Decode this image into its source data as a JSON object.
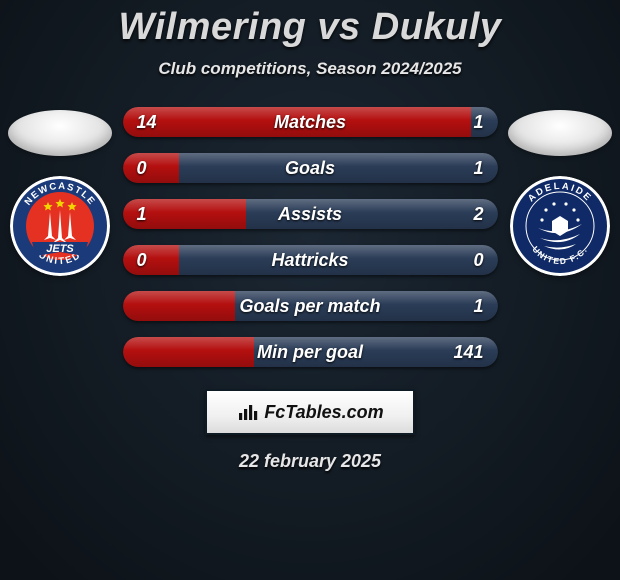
{
  "background_color": "#1b2733",
  "title": "Wilmering vs Dukuly",
  "subtitle": "Club competitions, Season 2024/2025",
  "date_text": "22 february 2025",
  "left_player": {
    "name": "Wilmering",
    "crest": {
      "outer_fill": "#ffffff",
      "ring_fill": "#1a3a7a",
      "ring_text_color": "#ffffff",
      "ring_text_top": "NEWCASTLE",
      "ring_text_bottom": "UNITED",
      "center_fill": "#e53122",
      "banner_fill": "#1a3a7a",
      "banner_text": "JETS",
      "banner_text_color": "#ffffff",
      "jet_fill": "#ffffff",
      "star_fill": "#f2d400"
    }
  },
  "right_player": {
    "name": "Dukuly",
    "crest": {
      "outer_fill": "#ffffff",
      "ring_fill": "#0f2a66",
      "ring_text_color": "#ffffff",
      "ring_text_top": "ADELAIDE",
      "ring_text_bottom": "UNITED F.C.",
      "center_fill": "#0f2a66",
      "ball_fill": "#ffffff",
      "star_fill": "#ffffff"
    }
  },
  "primary_color_left": "#b40f0f",
  "primary_color_right": "#2a3c57",
  "stats": [
    {
      "label": "Matches",
      "left_value": "14",
      "right_value": "1",
      "left_pct": 93,
      "right_pct": 7
    },
    {
      "label": "Goals",
      "left_value": "0",
      "right_value": "1",
      "left_pct": 15,
      "right_pct": 85
    },
    {
      "label": "Assists",
      "left_value": "1",
      "right_value": "2",
      "left_pct": 33,
      "right_pct": 67
    },
    {
      "label": "Hattricks",
      "left_value": "0",
      "right_value": "0",
      "left_pct": 15,
      "right_pct": 85
    },
    {
      "label": "Goals per match",
      "left_value": "",
      "right_value": "1",
      "left_pct": 30,
      "right_pct": 70
    },
    {
      "label": "Min per goal",
      "left_value": "",
      "right_value": "141",
      "left_pct": 35,
      "right_pct": 65
    }
  ],
  "plaque": {
    "text": "FcTables.com",
    "text_color": "#111111",
    "bg_color": "#f3f3f3",
    "border_color": "#0e1a24"
  },
  "typography": {
    "title_fontsize": 38,
    "subtitle_fontsize": 17,
    "bar_label_fontsize": 18,
    "date_fontsize": 18,
    "font_family": "Arial"
  }
}
